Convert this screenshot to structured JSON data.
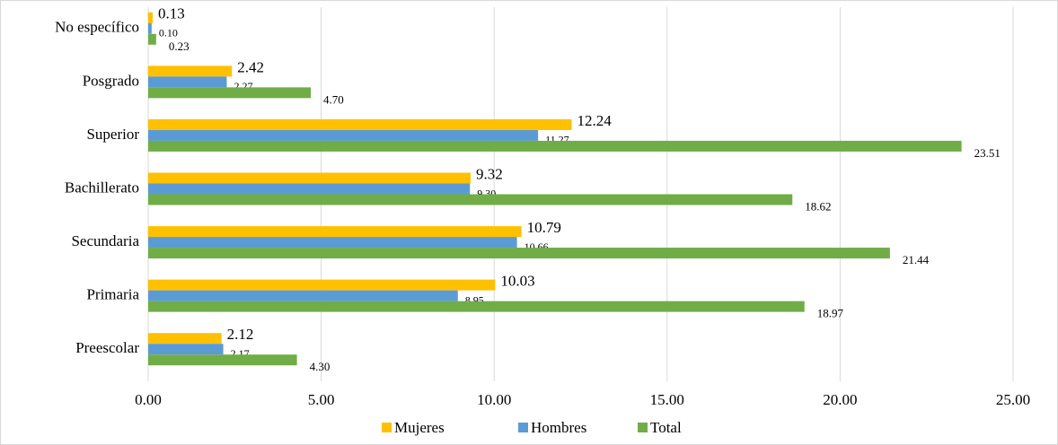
{
  "chart_data": {
    "type": "bar",
    "orientation": "horizontal",
    "categories": [
      "No específico",
      "Posgrado",
      "Superior",
      "Bachillerato",
      "Secundaria",
      "Primaria",
      "Preescolar"
    ],
    "series": [
      {
        "name": "Mujeres",
        "color": "#ffc000",
        "values": [
          0.13,
          2.42,
          12.24,
          9.32,
          10.79,
          10.03,
          2.12
        ],
        "value_labels": [
          "0.13",
          "2.42",
          "12.24",
          "9.32",
          "10.79",
          "10.03",
          "2.12"
        ]
      },
      {
        "name": "Hombres",
        "color": "#5b9bd5",
        "values": [
          0.1,
          2.27,
          11.27,
          9.3,
          10.66,
          8.95,
          2.17
        ],
        "value_labels": [
          "0.10",
          "2.27",
          "11.27",
          "9.30",
          "10.66",
          "8.95",
          "2.17"
        ]
      },
      {
        "name": "Total",
        "color": "#70ad47",
        "values": [
          0.23,
          4.7,
          23.51,
          18.62,
          21.44,
          18.97,
          4.3
        ],
        "value_labels": [
          "0.23",
          "4.70",
          "23.51",
          "18.62",
          "21.44",
          "18.97",
          "4.30"
        ]
      }
    ],
    "xlim": [
      0,
      25
    ],
    "xticks": [
      {
        "value": 0,
        "label": "0.00"
      },
      {
        "value": 5,
        "label": "5.00"
      },
      {
        "value": 10,
        "label": "10.00"
      },
      {
        "value": 15,
        "label": "15.00"
      },
      {
        "value": 20,
        "label": "20.00"
      },
      {
        "value": 25,
        "label": "25.00"
      }
    ],
    "grid": true,
    "legend": "bottom"
  }
}
